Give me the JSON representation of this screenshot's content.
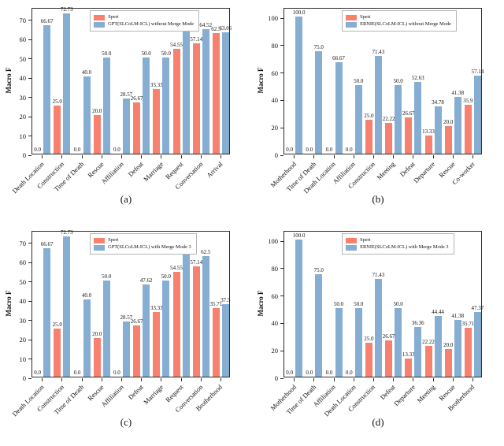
{
  "figure_title": "",
  "colors": {
    "spert_bar": "#f8806f",
    "llm_bar": "#86aed3",
    "spine": "#2b2b2b",
    "background": "#ffffff"
  },
  "chart_data": [
    {
      "id": "a",
      "type": "bar",
      "caption": "(a)",
      "ylabel": "Macro F",
      "ylim": [
        0,
        76
      ],
      "yticks": [
        "0",
        "10",
        "20",
        "30",
        "40",
        "50",
        "60",
        "70"
      ],
      "grid": false,
      "legend_position": "upper center",
      "categories": [
        "Death Location",
        "Construction",
        "Time of Death",
        "Rescue",
        "Affiliation",
        "Defeat",
        "Marriage",
        "Request",
        "Conversation",
        "Arrival"
      ],
      "series": [
        {
          "name": "Spert",
          "color_key": "spert_bar",
          "values": [
            "0.0",
            "25.0",
            "0.0",
            "20.0",
            "0.0",
            "26.67",
            "33.33",
            "54.55",
            "57.14",
            "62.5"
          ]
        },
        {
          "name": "GPT(SLCoLM-ICL) without Merge Mode",
          "color_key": "llm_bar",
          "values": [
            "66.67",
            "72.73",
            "40.0",
            "50.0",
            "28.57",
            "50.0",
            "50.0",
            "66.67",
            "64.52",
            "63.06"
          ]
        }
      ]
    },
    {
      "id": "b",
      "type": "bar",
      "caption": "(b)",
      "ylabel": "Macro F",
      "ylim": [
        0,
        107
      ],
      "yticks": [
        "0",
        "20",
        "40",
        "60",
        "80",
        "100"
      ],
      "grid": false,
      "legend_position": "upper center",
      "categories": [
        "Motherhood",
        "Time of Death",
        "Death Location",
        "Affiliation",
        "Construction",
        "Meeting",
        "Defeat",
        "Departure",
        "Rescue",
        "Co-worker"
      ],
      "series": [
        {
          "name": "Spert",
          "color_key": "spert_bar",
          "values": [
            "0.0",
            "0.0",
            "0.0",
            "0.0",
            "25.0",
            "22.22",
            "26.67",
            "13.33",
            "20.0",
            "35.9"
          ]
        },
        {
          "name": "ERNIE(SLCoLM-ICL) without Merge Mode",
          "color_key": "llm_bar",
          "values": [
            "100.0",
            "75.0",
            "66.67",
            "50.0",
            "71.43",
            "50.0",
            "52.63",
            "34.78",
            "41.38",
            "57.14"
          ]
        }
      ]
    },
    {
      "id": "c",
      "type": "bar",
      "caption": "(c)",
      "ylabel": "Macro F",
      "ylim": [
        0,
        76
      ],
      "yticks": [
        "0",
        "10",
        "20",
        "30",
        "40",
        "50",
        "60",
        "70"
      ],
      "grid": false,
      "legend_position": "upper center",
      "categories": [
        "Death Location",
        "Construction",
        "Time of Death",
        "Rescue",
        "Affiliation",
        "Defeat",
        "Marriage",
        "Request",
        "Conversation",
        "Brotherhood"
      ],
      "series": [
        {
          "name": "Spert",
          "color_key": "spert_bar",
          "values": [
            "0.0",
            "25.0",
            "0.0",
            "20.0",
            "0.0",
            "26.67",
            "33.33",
            "54.55",
            "57.14",
            "35.71"
          ]
        },
        {
          "name": "GPT(SLCoLM-ICL) with Merge Mode 3",
          "color_key": "llm_bar",
          "values": [
            "66.67",
            "72.73",
            "40.0",
            "50.0",
            "28.57",
            "47.62",
            "50.0",
            "66.67",
            "62.5",
            "37.5"
          ]
        }
      ]
    },
    {
      "id": "d",
      "type": "bar",
      "caption": "(d)",
      "ylabel": "Macro F",
      "ylim": [
        0,
        107
      ],
      "yticks": [
        "0",
        "20",
        "40",
        "60",
        "80",
        "100"
      ],
      "grid": false,
      "legend_position": "upper center",
      "categories": [
        "Motherhood",
        "Time of Death",
        "Affiliation",
        "Death Location",
        "Construction",
        "Defeat",
        "Departure",
        "Meeting",
        "Rescue",
        "Brotherhood"
      ],
      "series": [
        {
          "name": "Spert",
          "color_key": "spert_bar",
          "values": [
            "0.0",
            "0.0",
            "0.0",
            "0.0",
            "25.0",
            "26.67",
            "13.33",
            "22.22",
            "20.0",
            "35.71"
          ]
        },
        {
          "name": "ERNIE(SLCoLM-ICL) with Merge Mode 3",
          "color_key": "llm_bar",
          "values": [
            "100.0",
            "75.0",
            "50.0",
            "50.0",
            "71.43",
            "50.0",
            "36.36",
            "44.44",
            "41.38",
            "47.37"
          ]
        }
      ]
    }
  ]
}
